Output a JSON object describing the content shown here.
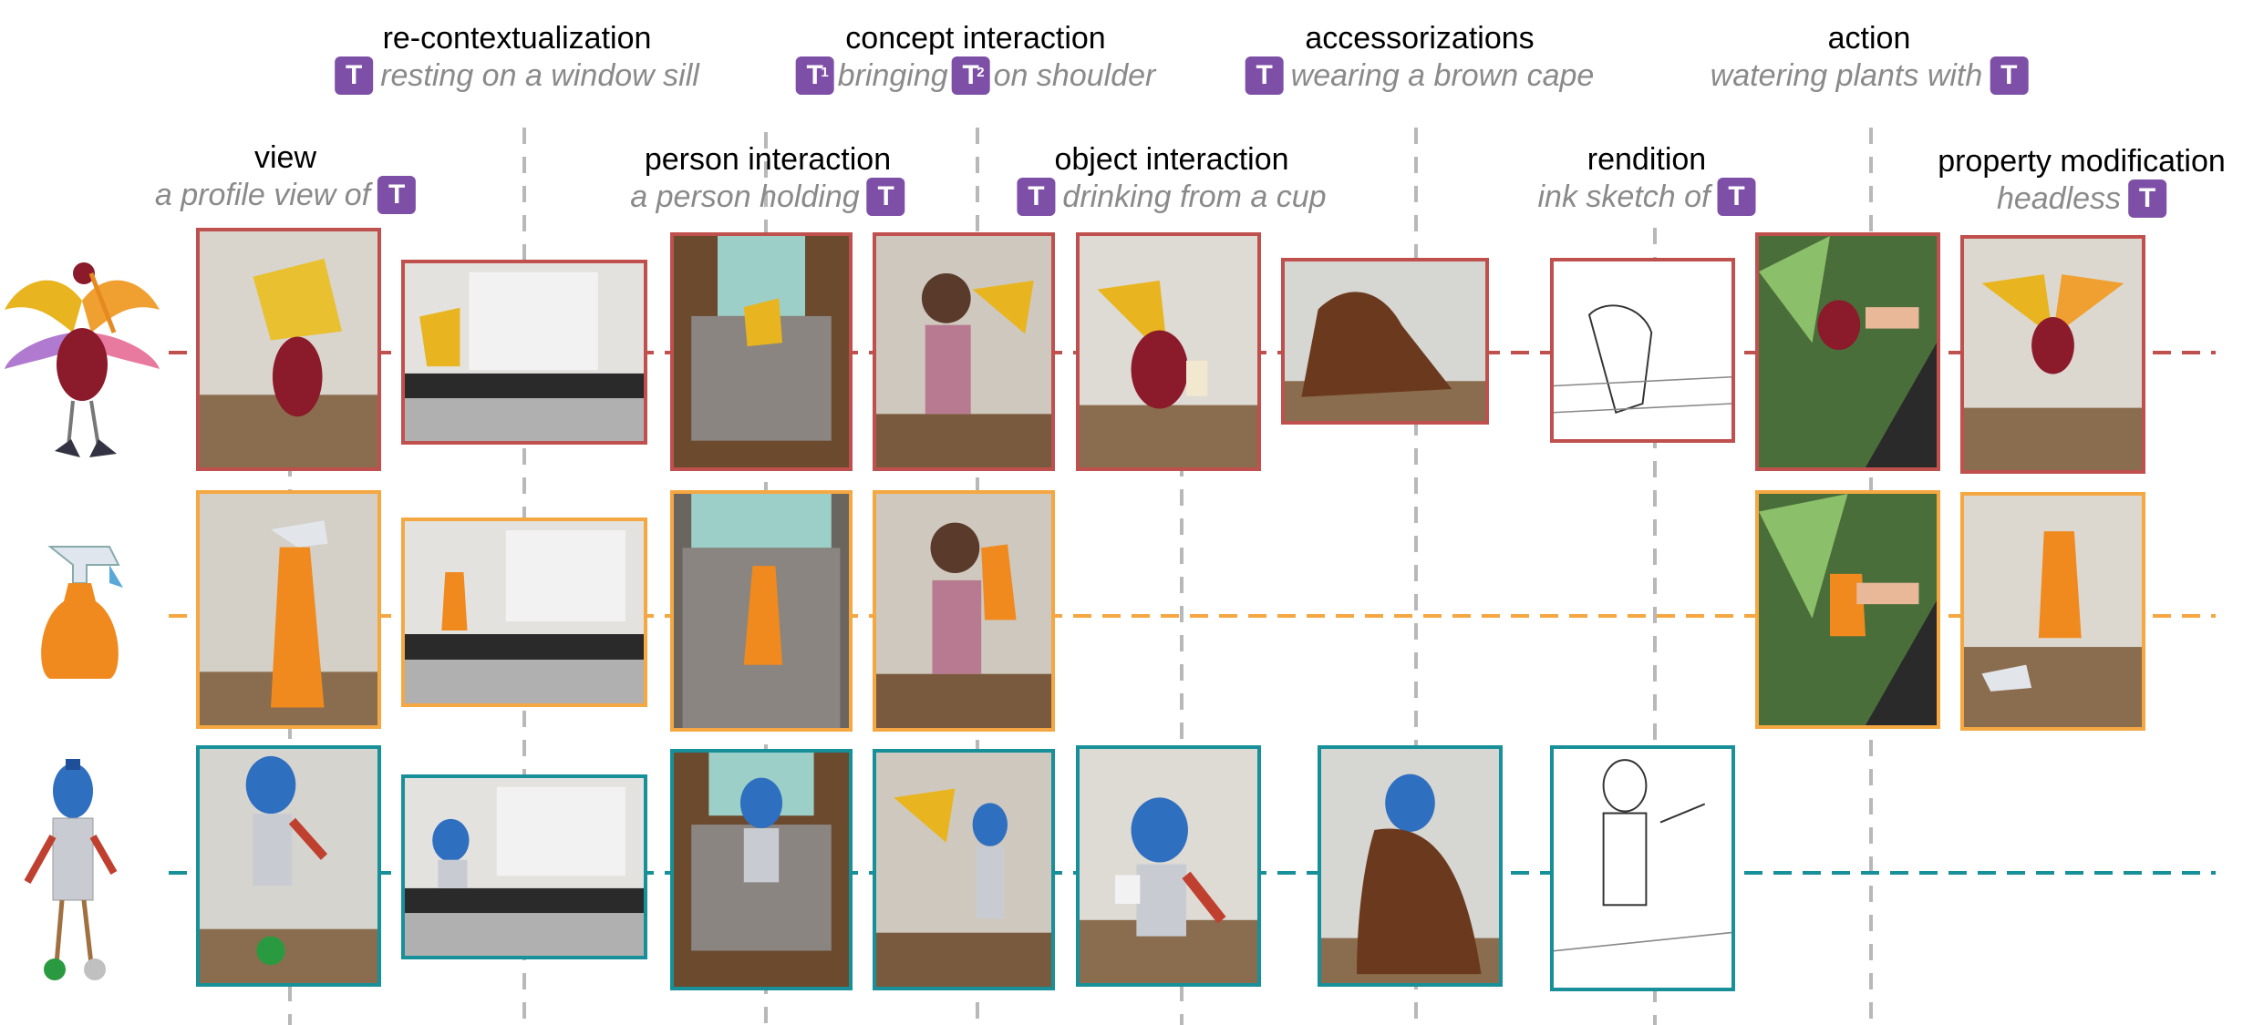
{
  "columns": [
    {
      "id": "view",
      "title": "view",
      "prompt_before": "a profile view of",
      "prompt_after": "",
      "token": "T"
    },
    {
      "id": "recontext",
      "title": "re-contextualization",
      "prompt_before": "",
      "prompt_after": "resting on a window sill",
      "token": "T"
    },
    {
      "id": "person",
      "title": "person interaction",
      "prompt_before": "a person holding",
      "prompt_after": "",
      "token": "T"
    },
    {
      "id": "concept",
      "title": "concept interaction",
      "prompt_before": "",
      "prompt_mid": "bringing",
      "prompt_after": "on shoulder",
      "token": "T",
      "token1_sub": "1",
      "token2_sub": "2"
    },
    {
      "id": "object",
      "title": "object interaction",
      "prompt_before": "",
      "prompt_after": "drinking from a cup",
      "token": "T"
    },
    {
      "id": "accessor",
      "title": "accessorizations",
      "prompt_before": "",
      "prompt_after": "wearing a brown cape",
      "token": "T"
    },
    {
      "id": "rendition",
      "title": "rendition",
      "prompt_before": "ink sketch of",
      "prompt_after": "",
      "token": "T"
    },
    {
      "id": "action",
      "title": "action",
      "prompt_before": "watering plants with",
      "prompt_after": "",
      "token": "T"
    },
    {
      "id": "property",
      "title": "property modification",
      "prompt_before": "headless",
      "prompt_after": "",
      "token": "T"
    }
  ],
  "rows": [
    {
      "id": "bird",
      "color": "#c0504d",
      "reference_icon": "bird-figure-icon"
    },
    {
      "id": "spray",
      "color": "#f5a742",
      "reference_icon": "spray-bottle-icon"
    },
    {
      "id": "bottle-figure",
      "color": "#17909a",
      "reference_icon": "bottle-figure-icon"
    }
  ]
}
